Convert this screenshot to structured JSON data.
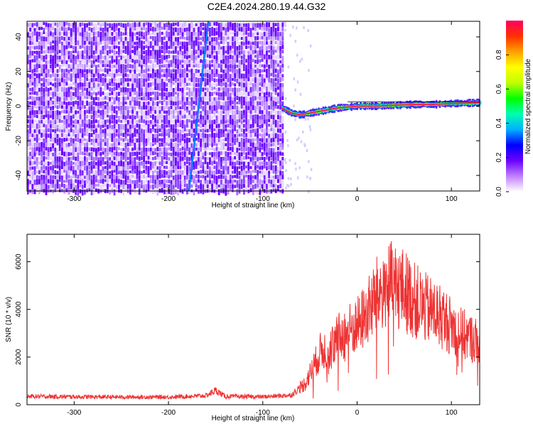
{
  "title": "C2E4.2024.280.19.44.G32",
  "chart_data": [
    {
      "type": "heatmap",
      "xlabel": "Height of straight line (km)",
      "ylabel": "Frequency (Hz)",
      "xlim": [
        -350,
        130
      ],
      "ylim": [
        -49,
        49
      ],
      "xticks": [
        -300,
        -200,
        -100,
        0,
        100
      ],
      "yticks": [
        -40,
        -20,
        0,
        20,
        40
      ],
      "noise_region": [
        -350,
        -78
      ],
      "signal_track": {
        "x": [
          -80,
          -70,
          -60,
          -50,
          -40,
          -30,
          -20,
          -10,
          0,
          20,
          40,
          60,
          80,
          100,
          130
        ],
        "freq": [
          -1,
          -4,
          -5,
          -4,
          -3,
          -2,
          -1,
          -0.5,
          0,
          0,
          0.5,
          1,
          1,
          1.5,
          2
        ]
      },
      "streak_x": [
        -176,
        -160
      ],
      "grid": false
    },
    {
      "type": "colorbar",
      "label": "Normalized spectral amplitude",
      "range": [
        0,
        1
      ],
      "ticks": [
        "0.0",
        "0.2",
        "0.4",
        "0.6",
        "0.8"
      ],
      "colors": [
        "#ffffff",
        "#c080ff",
        "#6a00ff",
        "#0000ff",
        "#00b0ff",
        "#00ffb0",
        "#00ff00",
        "#c0ff00",
        "#ffff00",
        "#ffa000",
        "#ff3000",
        "#ff0060"
      ]
    },
    {
      "type": "line",
      "xlabel": "Height of straight line (km)",
      "ylabel": "SNR (10 * v/v)",
      "xlim": [
        -350,
        130
      ],
      "ylim": [
        0,
        7150
      ],
      "xticks": [
        -300,
        -200,
        -100,
        0,
        100
      ],
      "yticks": [
        0,
        2000,
        4000,
        6000
      ],
      "color": "#ee3333",
      "grid": false,
      "series": [
        {
          "x": [
            -350,
            -300,
            -250,
            -200,
            -160,
            -150,
            -140,
            -100,
            -70,
            -55,
            -45,
            -38,
            -30,
            -20,
            -10,
            0,
            10,
            20,
            30,
            40,
            50,
            60,
            70,
            80,
            90,
            100,
            110,
            120,
            130
          ],
          "y": [
            350,
            330,
            320,
            320,
            380,
            600,
            350,
            330,
            400,
            900,
            1700,
            2300,
            2300,
            2800,
            3100,
            3300,
            3800,
            4500,
            5000,
            5000,
            4800,
            4400,
            4100,
            3900,
            3700,
            3300,
            3000,
            2800,
            2650
          ]
        }
      ]
    }
  ]
}
